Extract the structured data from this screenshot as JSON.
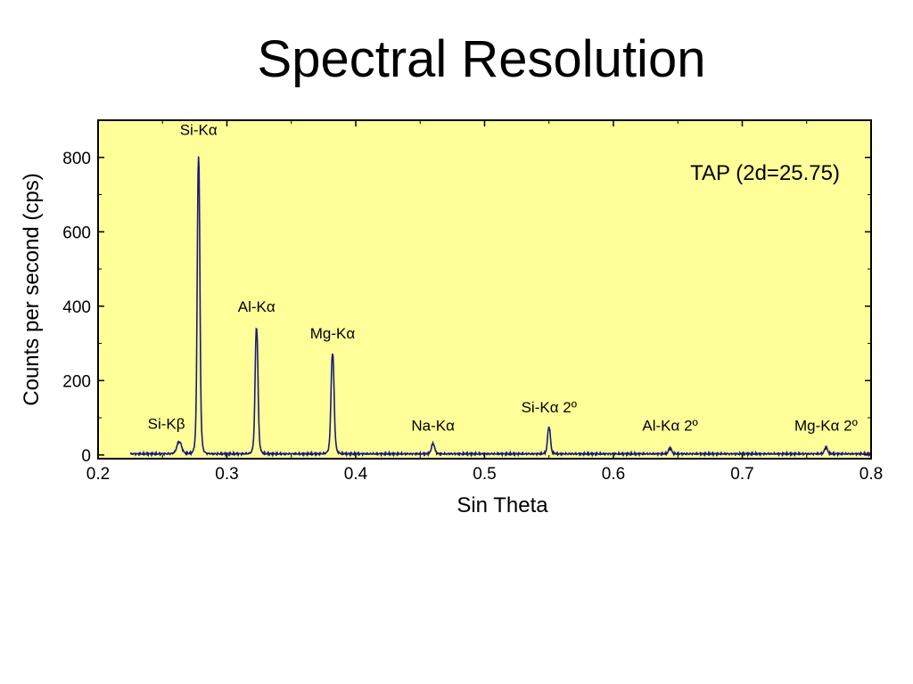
{
  "slide": {
    "title": "Spectral Resolution"
  },
  "chart_data": {
    "type": "line",
    "title": "",
    "xlabel": "Sin Theta",
    "ylabel": "Counts per second (cps)",
    "xlim": [
      0.2,
      0.8
    ],
    "ylim": [
      -10,
      900
    ],
    "xticks": [
      0.2,
      0.3,
      0.4,
      0.5,
      0.6,
      0.7,
      0.8
    ],
    "xtick_labels": [
      "0.2",
      "0.3",
      "0.4",
      "0.5",
      "0.6",
      "0.7",
      "0.8"
    ],
    "yticks": [
      0,
      200,
      400,
      600,
      800
    ],
    "ytick_labels": [
      "0",
      "200",
      "400",
      "600",
      "800"
    ],
    "grid": false,
    "legend": "none",
    "background_color": "#FFFF99",
    "line_color": "#1a1a7a",
    "annotation": "TAP (2d=25.75)",
    "baseline_counts": 3,
    "x_range": [
      0.225,
      0.8
    ],
    "peaks": [
      {
        "label": "Si-Kβ",
        "x": 0.263,
        "y": 35,
        "label_x": 0.253,
        "label_y": 70
      },
      {
        "label": "Si-Kα",
        "x": 0.278,
        "y": 805,
        "label_x": 0.278,
        "label_y": 860
      },
      {
        "label": "Al-Kα",
        "x": 0.323,
        "y": 343,
        "label_x": 0.323,
        "label_y": 385
      },
      {
        "label": "Mg-Kα",
        "x": 0.382,
        "y": 273,
        "label_x": 0.382,
        "label_y": 313
      },
      {
        "label": "Na-Kα",
        "x": 0.46,
        "y": 30,
        "label_x": 0.46,
        "label_y": 65
      },
      {
        "label": "Si-Kα 2º",
        "x": 0.55,
        "y": 75,
        "label_x": 0.55,
        "label_y": 115
      },
      {
        "label": "Al-Kα 2º",
        "x": 0.644,
        "y": 18,
        "label_x": 0.644,
        "label_y": 65
      },
      {
        "label": "Mg-Kα 2º",
        "x": 0.765,
        "y": 20,
        "label_x": 0.765,
        "label_y": 65
      }
    ]
  }
}
